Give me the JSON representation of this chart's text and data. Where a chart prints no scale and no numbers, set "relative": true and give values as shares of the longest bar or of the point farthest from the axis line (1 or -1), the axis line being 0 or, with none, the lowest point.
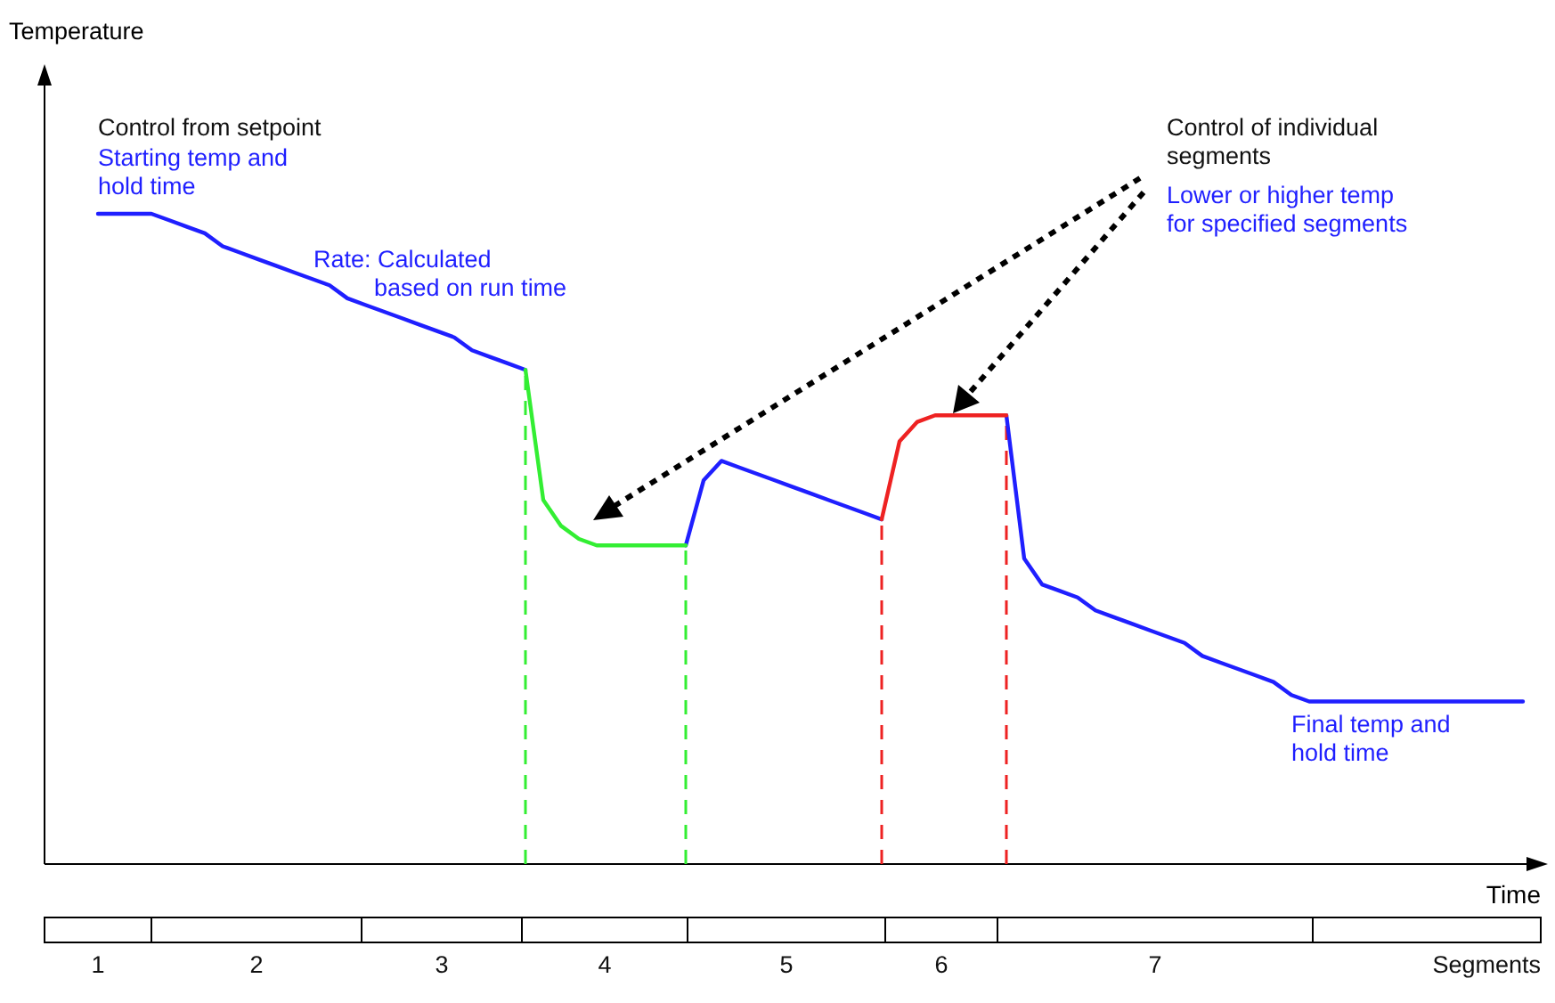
{
  "chart_data": {
    "type": "line",
    "relative": true,
    "xlabel": "Time",
    "categories": [
      null,
      null,
      null,
      null,
      null,
      null,
      null,
      null,
      null,
      null,
      null,
      null,
      null,
      null,
      null,
      null,
      null,
      null,
      null,
      null,
      null,
      null,
      null,
      null,
      null,
      null,
      null,
      null,
      null,
      null,
      null,
      null,
      null,
      null,
      null,
      null,
      null,
      null,
      null,
      null,
      null,
      null,
      null,
      null,
      null,
      null,
      null,
      null,
      null,
      null,
      null,
      null,
      null,
      null,
      null,
      null,
      null,
      null,
      null,
      null,
      null,
      null,
      null,
      null,
      null,
      null,
      null,
      null,
      null,
      null,
      null,
      null,
      null,
      null,
      null,
      null,
      null,
      null,
      null,
      null,
      null,
      null,
      null,
      null,
      null
    ],
    "series": [
      {
        "color": "#1f1fff",
        "values": [
          null,
          null,
          null,
          1,
          1,
          1,
          1,
          0.99,
          0.98,
          0.97,
          0.95,
          0.94,
          0.93,
          0.92,
          0.91,
          0.9,
          0.89,
          0.87,
          0.86,
          0.85,
          0.84,
          0.83,
          0.82,
          0.81,
          0.79,
          0.78,
          0.77,
          0.76,
          null,
          null,
          null,
          null,
          null,
          null,
          null,
          null,
          0.49,
          0.59,
          0.62,
          0.61,
          0.6,
          0.59,
          0.58,
          0.57,
          0.56,
          0.55,
          0.54,
          0.53,
          null,
          null,
          null,
          null,
          null,
          null,
          0.69,
          0.47,
          0.43,
          0.42,
          0.41,
          0.39,
          0.38,
          0.37,
          0.36,
          0.35,
          0.34,
          0.32,
          0.31,
          0.3,
          0.29,
          0.28,
          0.26,
          0.25,
          0.25,
          0.25,
          0.25,
          0.25,
          0.25,
          0.25,
          0.25,
          0.25,
          0.25,
          0.25,
          0.25,
          0.25,
          null
        ]
      },
      {
        "color": "#33ee33",
        "values": [
          null,
          null,
          null,
          null,
          null,
          null,
          null,
          null,
          null,
          null,
          null,
          null,
          null,
          null,
          null,
          null,
          null,
          null,
          null,
          null,
          null,
          null,
          null,
          null,
          null,
          null,
          null,
          0.76,
          0.56,
          0.52,
          0.5,
          0.49,
          0.49,
          0.49,
          0.49,
          0.49,
          0.49,
          null,
          null,
          null,
          null,
          null,
          null,
          null,
          null,
          null,
          null,
          null,
          null,
          null,
          null,
          null,
          null,
          null,
          null,
          null,
          null,
          null,
          null,
          null,
          null,
          null,
          null,
          null,
          null,
          null,
          null,
          null,
          null,
          null,
          null,
          null,
          null,
          null,
          null,
          null,
          null,
          null,
          null,
          null,
          null,
          null,
          null,
          null,
          null
        ]
      },
      {
        "color": "#ee2222",
        "values": [
          null,
          null,
          null,
          null,
          null,
          null,
          null,
          null,
          null,
          null,
          null,
          null,
          null,
          null,
          null,
          null,
          null,
          null,
          null,
          null,
          null,
          null,
          null,
          null,
          null,
          null,
          null,
          null,
          null,
          null,
          null,
          null,
          null,
          null,
          null,
          null,
          null,
          null,
          null,
          null,
          null,
          null,
          null,
          null,
          null,
          null,
          null,
          0.53,
          0.65,
          0.68,
          0.69,
          0.69,
          0.69,
          0.69,
          0.69,
          null,
          null,
          null,
          null,
          null,
          null,
          null,
          null,
          null,
          null,
          null,
          null,
          null,
          null,
          null,
          null,
          null,
          null,
          null,
          null,
          null,
          null,
          null,
          null,
          null,
          null,
          null,
          null,
          null,
          null
        ]
      }
    ],
    "annotations": [
      "Temperature",
      "Control from setpoint",
      "Starting temp and hold time",
      "Rate: Calculated based on run time",
      "Control of individual segments",
      "Lower or higher temp for specified segments",
      "Final temp and hold time",
      "Segments",
      "1",
      "2",
      "3",
      "4",
      "5",
      "6",
      "7"
    ]
  }
}
